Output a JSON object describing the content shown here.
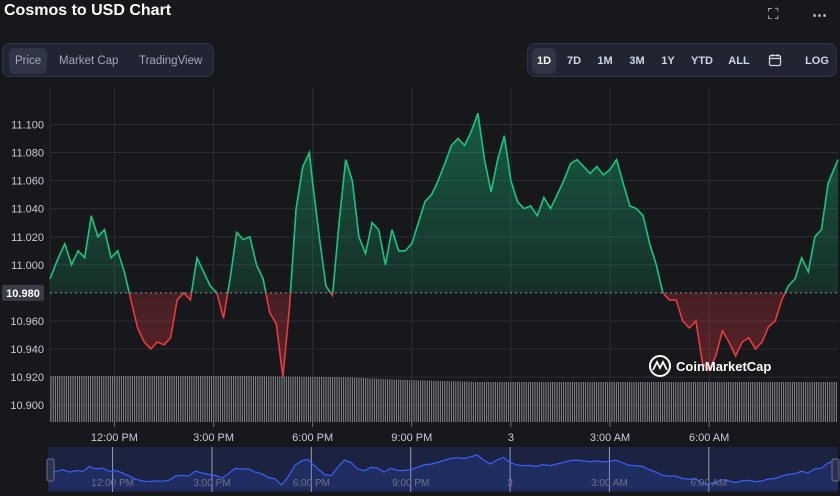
{
  "title": "Cosmos to USD Chart",
  "header_icons": [
    "fullscreen-icon",
    "more-icon"
  ],
  "tabs": [
    {
      "label": "Price",
      "active": true
    },
    {
      "label": "Market Cap",
      "active": false
    },
    {
      "label": "TradingView",
      "active": false
    }
  ],
  "ranges": [
    {
      "label": "1D",
      "active": true
    },
    {
      "label": "7D",
      "active": false
    },
    {
      "label": "1M",
      "active": false
    },
    {
      "label": "3M",
      "active": false
    },
    {
      "label": "1Y",
      "active": false
    },
    {
      "label": "YTD",
      "active": false
    },
    {
      "label": "ALL",
      "active": false
    },
    {
      "label": "",
      "icon": "calendar-icon",
      "active": false
    },
    {
      "label": "LOG",
      "active": false
    }
  ],
  "watermark": "CoinMarketCap",
  "colors": {
    "up": "#16c784",
    "down": "#ea3943",
    "bg": "#17181b",
    "navigator": "#3861fb"
  },
  "chart_data": {
    "type": "line",
    "title": "",
    "reference_value": 10.98,
    "reference_label": "10.980",
    "y_ticks": [
      "11.100",
      "11.080",
      "11.060",
      "11.040",
      "11.020",
      "11.000",
      "10.960",
      "10.940",
      "10.920",
      "10.900"
    ],
    "y_tick_values": [
      11.1,
      11.08,
      11.06,
      11.04,
      11.02,
      11.0,
      10.96,
      10.94,
      10.92,
      10.9
    ],
    "ylim": [
      10.888,
      11.126
    ],
    "x_ticks": [
      "12:00 PM",
      "3:00 PM",
      "6:00 PM",
      "9:00 PM",
      "3",
      "3:00 AM",
      "6:00 AM"
    ],
    "x_tick_hours": [
      12,
      15,
      18,
      21,
      24,
      27,
      30
    ],
    "xlim_hours": [
      10.05,
      33.9
    ],
    "price": {
      "hours": [
        10.05,
        10.3,
        10.5,
        10.7,
        10.9,
        11.1,
        11.3,
        11.5,
        11.7,
        11.9,
        12.1,
        12.3,
        12.5,
        12.7,
        12.9,
        13.1,
        13.3,
        13.5,
        13.7,
        13.9,
        14.1,
        14.3,
        14.5,
        14.7,
        14.9,
        15.1,
        15.3,
        15.5,
        15.7,
        15.9,
        16.1,
        16.3,
        16.5,
        16.7,
        16.9,
        17.1,
        17.3,
        17.5,
        17.7,
        17.9,
        18.0,
        18.2,
        18.4,
        18.6,
        18.8,
        19.0,
        19.2,
        19.4,
        19.6,
        19.8,
        20.0,
        20.2,
        20.4,
        20.6,
        20.8,
        21.0,
        21.2,
        21.4,
        21.6,
        21.8,
        22.0,
        22.2,
        22.4,
        22.6,
        22.8,
        23.0,
        23.2,
        23.4,
        23.6,
        23.8,
        24.0,
        24.2,
        24.4,
        24.6,
        24.8,
        25.0,
        25.2,
        25.4,
        25.6,
        25.8,
        26.0,
        26.2,
        26.4,
        26.6,
        26.8,
        27.0,
        27.2,
        27.4,
        27.6,
        27.8,
        28.0,
        28.2,
        28.4,
        28.6,
        28.8,
        29.0,
        29.2,
        29.4,
        29.6,
        29.8,
        30.0,
        30.2,
        30.4,
        30.6,
        30.8,
        31.0,
        31.2,
        31.4,
        31.6,
        31.8,
        32.0,
        32.2,
        32.4,
        32.6,
        32.8,
        33.0,
        33.2,
        33.4,
        33.6,
        33.9
      ],
      "values": [
        10.99,
        11.005,
        11.015,
        11.0,
        11.01,
        11.005,
        11.035,
        11.02,
        11.025,
        11.005,
        11.01,
        10.995,
        10.975,
        10.955,
        10.945,
        10.94,
        10.945,
        10.943,
        10.948,
        10.975,
        10.98,
        10.975,
        11.005,
        10.995,
        10.985,
        10.98,
        10.962,
        10.99,
        11.023,
        11.018,
        11.02,
        11.0,
        10.99,
        10.966,
        10.958,
        10.92,
        10.97,
        11.04,
        11.07,
        11.08,
        11.058,
        11.02,
        10.985,
        10.978,
        11.03,
        11.075,
        11.06,
        11.02,
        11.008,
        11.03,
        11.025,
        11.0,
        11.025,
        11.01,
        11.01,
        11.015,
        11.03,
        11.045,
        11.05,
        11.06,
        11.072,
        11.085,
        11.09,
        11.085,
        11.095,
        11.108,
        11.075,
        11.052,
        11.075,
        11.092,
        11.06,
        11.045,
        11.04,
        11.042,
        11.035,
        11.048,
        11.04,
        11.05,
        11.06,
        11.072,
        11.075,
        11.07,
        11.065,
        11.07,
        11.064,
        11.068,
        11.075,
        11.058,
        11.042,
        11.04,
        11.035,
        11.015,
        11.0,
        10.98,
        10.975,
        10.975,
        10.96,
        10.955,
        10.96,
        10.93,
        10.925,
        10.935,
        10.953,
        10.945,
        10.935,
        10.945,
        10.948,
        10.94,
        10.945,
        10.956,
        10.96,
        10.975,
        10.985,
        10.99,
        11.005,
        10.995,
        11.02,
        11.025,
        11.058,
        11.075
      ]
    },
    "volume_profile": {
      "hours": [
        10.05,
        16,
        18.3,
        19.2,
        20.2,
        21.5,
        23,
        26,
        30,
        33.9
      ],
      "relative": [
        1.0,
        1.0,
        0.98,
        0.97,
        0.93,
        0.9,
        0.87,
        0.87,
        0.87,
        0.87
      ]
    }
  }
}
